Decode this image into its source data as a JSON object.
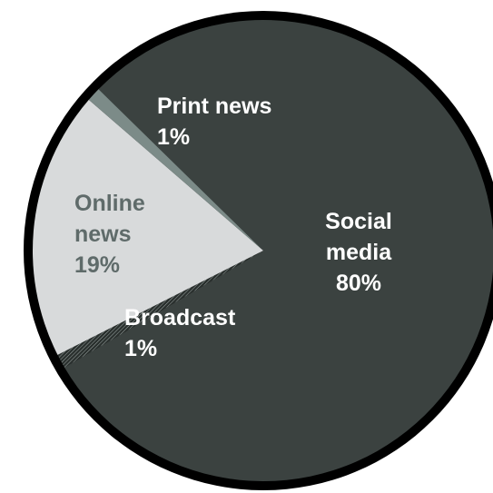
{
  "chart_data": {
    "type": "pie",
    "title": "",
    "slices": [
      {
        "category": "Social media",
        "value": 80,
        "label_lines": [
          "Social",
          "media",
          "80%"
        ],
        "color": "#3b4240",
        "text_color": "#ffffff"
      },
      {
        "category": "Broadcast",
        "value": 1,
        "label_lines": [
          "Broadcast",
          "1%"
        ],
        "color": "#2a302e",
        "text_color": "#ffffff"
      },
      {
        "category": "Online news",
        "value": 19,
        "label_lines": [
          "Online",
          "news",
          "19%"
        ],
        "color": "#d8dadb",
        "text_color": "#5f6b6a"
      },
      {
        "category": "Print news",
        "value": 1,
        "label_lines": [
          "Print news",
          "1%"
        ],
        "color": "#7c8b88",
        "text_color": "#ffffff"
      }
    ],
    "legend": "none",
    "border_color": "#000000",
    "background": "#ffffff"
  }
}
